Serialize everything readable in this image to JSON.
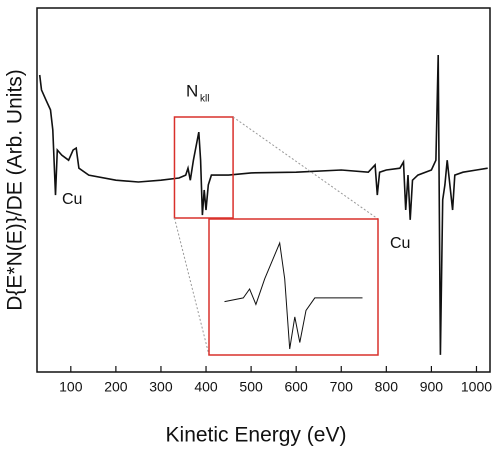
{
  "chart_data": {
    "type": "line",
    "x_label": "Kinetic Energy (eV)",
    "y_label": "D{E*N(E)}/DE (Arb. Units)",
    "annotations": [
      "Cu",
      "Cu",
      "N",
      "kll"
    ],
    "xlim": [
      25,
      1030
    ],
    "ylim": [
      0,
      100
    ],
    "xticks": [
      100,
      200,
      300,
      400,
      500,
      600,
      700,
      800,
      900,
      1000
    ],
    "color": "#111111",
    "inset_color": "#d9302b",
    "inset_range": [
      330,
      460
    ],
    "x": [
      31,
      35,
      45,
      55,
      60,
      66,
      70,
      80,
      95,
      105,
      112,
      118,
      140,
      200,
      250,
      300,
      340,
      355,
      360,
      365,
      372,
      384,
      388,
      392,
      396,
      400,
      405,
      412,
      450,
      500,
      600,
      700,
      760,
      775,
      780,
      785,
      800,
      830,
      838,
      843,
      848,
      853,
      858,
      870,
      900,
      910,
      915,
      920,
      925,
      930,
      935,
      947,
      952,
      970,
      1000,
      1025
    ],
    "values": [
      81.6,
      77.5,
      74.7,
      72,
      66.5,
      48.6,
      61,
      59.6,
      58.2,
      61,
      61.5,
      56,
      54.1,
      52.7,
      52.2,
      52.7,
      53.3,
      54.1,
      56,
      52.7,
      58.2,
      65.9,
      58.2,
      43.1,
      50,
      44.5,
      51.4,
      54.1,
      54.1,
      54.7,
      54.9,
      55.5,
      54.9,
      56.9,
      48.6,
      54.9,
      55.5,
      56,
      57.7,
      44.5,
      54.1,
      41.8,
      52.7,
      54.1,
      55.5,
      58.2,
      87.1,
      4.7,
      47.3,
      51.4,
      58.2,
      44.5,
      54.1,
      54.9,
      55.5,
      56
    ]
  }
}
